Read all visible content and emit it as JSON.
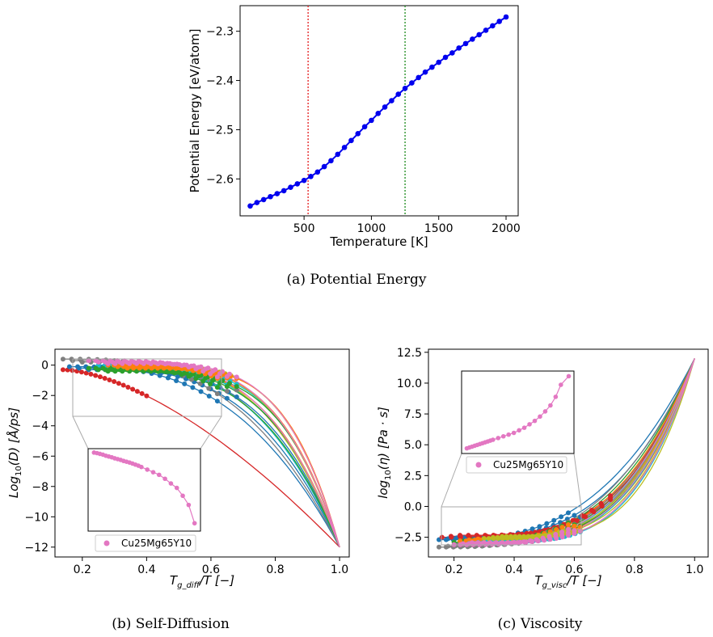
{
  "chart_data": [
    {
      "type": "line",
      "caption": "(a) Potential Energy",
      "xlabel": "Temperature [K]",
      "ylabel": "Potential Energy [eV/atom]",
      "xlim": [
        25,
        2090
      ],
      "ylim": [
        -2.675,
        -2.248
      ],
      "xticks": [
        {
          "v": 500,
          "label": "500"
        },
        {
          "v": 1000,
          "label": "1000"
        },
        {
          "v": 1500,
          "label": "1500"
        },
        {
          "v": 2000,
          "label": "2000"
        }
      ],
      "yticks": [
        {
          "v": -2.3,
          "label": "−2.3"
        },
        {
          "v": -2.4,
          "label": "−2.4"
        },
        {
          "v": -2.5,
          "label": "−2.5"
        },
        {
          "v": -2.6,
          "label": "−2.6"
        }
      ],
      "vlines": [
        {
          "x": 530,
          "color": "#e41a1c"
        },
        {
          "x": 1250,
          "color": "#1a8a1a"
        }
      ],
      "series_color": "#0000ee",
      "x": [
        100,
        150,
        200,
        250,
        300,
        350,
        400,
        450,
        500,
        550,
        600,
        650,
        700,
        750,
        800,
        850,
        900,
        950,
        1000,
        1050,
        1100,
        1150,
        1200,
        1250,
        1300,
        1350,
        1400,
        1450,
        1500,
        1550,
        1600,
        1650,
        1700,
        1750,
        1800,
        1850,
        1900,
        1950,
        2000
      ],
      "y": [
        -2.655,
        -2.648,
        -2.642,
        -2.636,
        -2.63,
        -2.624,
        -2.617,
        -2.61,
        -2.603,
        -2.595,
        -2.586,
        -2.575,
        -2.563,
        -2.55,
        -2.536,
        -2.522,
        -2.508,
        -2.494,
        -2.481,
        -2.467,
        -2.454,
        -2.441,
        -2.428,
        -2.416,
        -2.405,
        -2.394,
        -2.383,
        -2.373,
        -2.363,
        -2.353,
        -2.344,
        -2.334,
        -2.325,
        -2.316,
        -2.307,
        -2.298,
        -2.289,
        -2.28,
        -2.271
      ]
    },
    {
      "type": "scatter",
      "caption": "(b) Self-Diffusion",
      "xlabel_main": "T",
      "xlabel_sub": "g_diff",
      "xlabel_rest": "/T [−]",
      "ylabel_pre": "Log",
      "ylabel_sub": "10",
      "ylabel_rest": "(D) [Å/ps]",
      "xlim": [
        0.115,
        1.03
      ],
      "ylim": [
        -12.65,
        1.05
      ],
      "xticks": [
        {
          "v": 0.2,
          "label": "0.2"
        },
        {
          "v": 0.4,
          "label": "0.4"
        },
        {
          "v": 0.6,
          "label": "0.6"
        },
        {
          "v": 0.8,
          "label": "0.8"
        },
        {
          "v": 1.0,
          "label": "1.0"
        }
      ],
      "yticks": [
        {
          "v": 0,
          "label": "0"
        },
        {
          "v": -2,
          "label": "−2"
        },
        {
          "v": -4,
          "label": "−4"
        },
        {
          "v": -6,
          "label": "−6"
        },
        {
          "v": -8,
          "label": "−8"
        },
        {
          "v": -10,
          "label": "−10"
        },
        {
          "v": -12,
          "label": "−12"
        }
      ],
      "legend": "Cu25Mg65Y10",
      "highlight_color": "#e377c2",
      "curves": [
        {
          "color": "#d62728",
          "start": [
            0.14,
            -0.3
          ],
          "end": [
            1.0,
            -12.0
          ]
        },
        {
          "color": "#1f77b4",
          "start": [
            0.16,
            -0.1
          ],
          "end": [
            1.0,
            -12.0
          ]
        },
        {
          "color": "#7f7f7f",
          "start": [
            0.14,
            0.4
          ],
          "end": [
            1.0,
            -12.0
          ]
        },
        {
          "color": "#17becf",
          "start": [
            0.25,
            0.0
          ],
          "end": [
            1.0,
            -12.0
          ]
        },
        {
          "color": "#bcbd22",
          "start": [
            0.3,
            0.1
          ],
          "end": [
            1.0,
            -12.0
          ]
        },
        {
          "color": "#2ca02c",
          "start": [
            0.22,
            -0.2
          ],
          "end": [
            1.0,
            -12.0
          ]
        },
        {
          "color": "#ff7f0e",
          "start": [
            0.28,
            0.0
          ],
          "end": [
            1.0,
            -12.0
          ]
        },
        {
          "color": "#e377c2",
          "start": [
            0.22,
            0.3
          ],
          "end": [
            1.0,
            -12.0
          ]
        }
      ],
      "inset_points_x": [
        0.22,
        0.23,
        0.24,
        0.25,
        0.26,
        0.27,
        0.28,
        0.29,
        0.3,
        0.31,
        0.32,
        0.33,
        0.34,
        0.35,
        0.36,
        0.37,
        0.38,
        0.4,
        0.42,
        0.44,
        0.46,
        0.48,
        0.5,
        0.52,
        0.54,
        0.56
      ],
      "inset_points_y": [
        0.3,
        0.28,
        0.25,
        0.22,
        0.18,
        0.15,
        0.12,
        0.08,
        0.05,
        0.02,
        -0.02,
        -0.05,
        -0.08,
        -0.12,
        -0.16,
        -0.2,
        -0.25,
        -0.35,
        -0.45,
        -0.55,
        -0.7,
        -0.88,
        -1.05,
        -1.35,
        -1.7,
        -2.4
      ]
    },
    {
      "type": "scatter",
      "caption": "(c) Viscosity",
      "xlabel_main": "T",
      "xlabel_sub": "g_visc",
      "xlabel_rest": "/T [−]",
      "ylabel_pre": "log",
      "ylabel_sub": "10",
      "ylabel_rest": "(η) [Pa · s]",
      "xlim": [
        0.115,
        1.045
      ],
      "ylim": [
        -4.1,
        12.75
      ],
      "xticks": [
        {
          "v": 0.2,
          "label": "0.2"
        },
        {
          "v": 0.4,
          "label": "0.4"
        },
        {
          "v": 0.6,
          "label": "0.6"
        },
        {
          "v": 0.8,
          "label": "0.8"
        },
        {
          "v": 1.0,
          "label": "1.0"
        }
      ],
      "yticks": [
        {
          "v": 12.5,
          "label": "12.5"
        },
        {
          "v": 10.0,
          "label": "10.0"
        },
        {
          "v": 7.5,
          "label": "7.5"
        },
        {
          "v": 5.0,
          "label": "5.0"
        },
        {
          "v": 2.5,
          "label": "2.5"
        },
        {
          "v": 0.0,
          "label": "0.0"
        },
        {
          "v": -2.5,
          "label": "−2.5"
        }
      ],
      "legend": "Cu25Mg65Y10",
      "highlight_color": "#e377c2",
      "curves": [
        {
          "color": "#1f77b4",
          "start": [
            0.15,
            -2.7
          ],
          "end": [
            1.0,
            12.0
          ]
        },
        {
          "color": "#d62728",
          "start": [
            0.16,
            -2.5
          ],
          "end": [
            1.0,
            12.0
          ]
        },
        {
          "color": "#7f7f7f",
          "start": [
            0.15,
            -3.3
          ],
          "end": [
            1.0,
            12.0
          ]
        },
        {
          "color": "#2ca02c",
          "start": [
            0.2,
            -2.9
          ],
          "end": [
            1.0,
            12.0
          ]
        },
        {
          "color": "#ff7f0e",
          "start": [
            0.22,
            -2.8
          ],
          "end": [
            1.0,
            12.0
          ]
        },
        {
          "color": "#17becf",
          "start": [
            0.25,
            -3.0
          ],
          "end": [
            1.0,
            12.0
          ]
        },
        {
          "color": "#bcbd22",
          "start": [
            0.3,
            -2.6
          ],
          "end": [
            1.0,
            12.0
          ]
        },
        {
          "color": "#e377c2",
          "start": [
            0.2,
            -3.1
          ],
          "end": [
            1.0,
            12.0
          ]
        }
      ],
      "inset_points_x": [
        0.16,
        0.17,
        0.18,
        0.19,
        0.2,
        0.21,
        0.22,
        0.23,
        0.24,
        0.25,
        0.26,
        0.28,
        0.3,
        0.32,
        0.34,
        0.36,
        0.38,
        0.4,
        0.42,
        0.44,
        0.46,
        0.48,
        0.5,
        0.52,
        0.55
      ],
      "inset_points_y": [
        -3.1,
        -3.05,
        -3.0,
        -2.95,
        -2.9,
        -2.85,
        -2.8,
        -2.75,
        -2.7,
        -2.65,
        -2.6,
        -2.5,
        -2.4,
        -2.3,
        -2.2,
        -2.05,
        -1.9,
        -1.7,
        -1.5,
        -1.25,
        -0.95,
        -0.6,
        -0.1,
        0.6,
        1.1
      ]
    }
  ]
}
